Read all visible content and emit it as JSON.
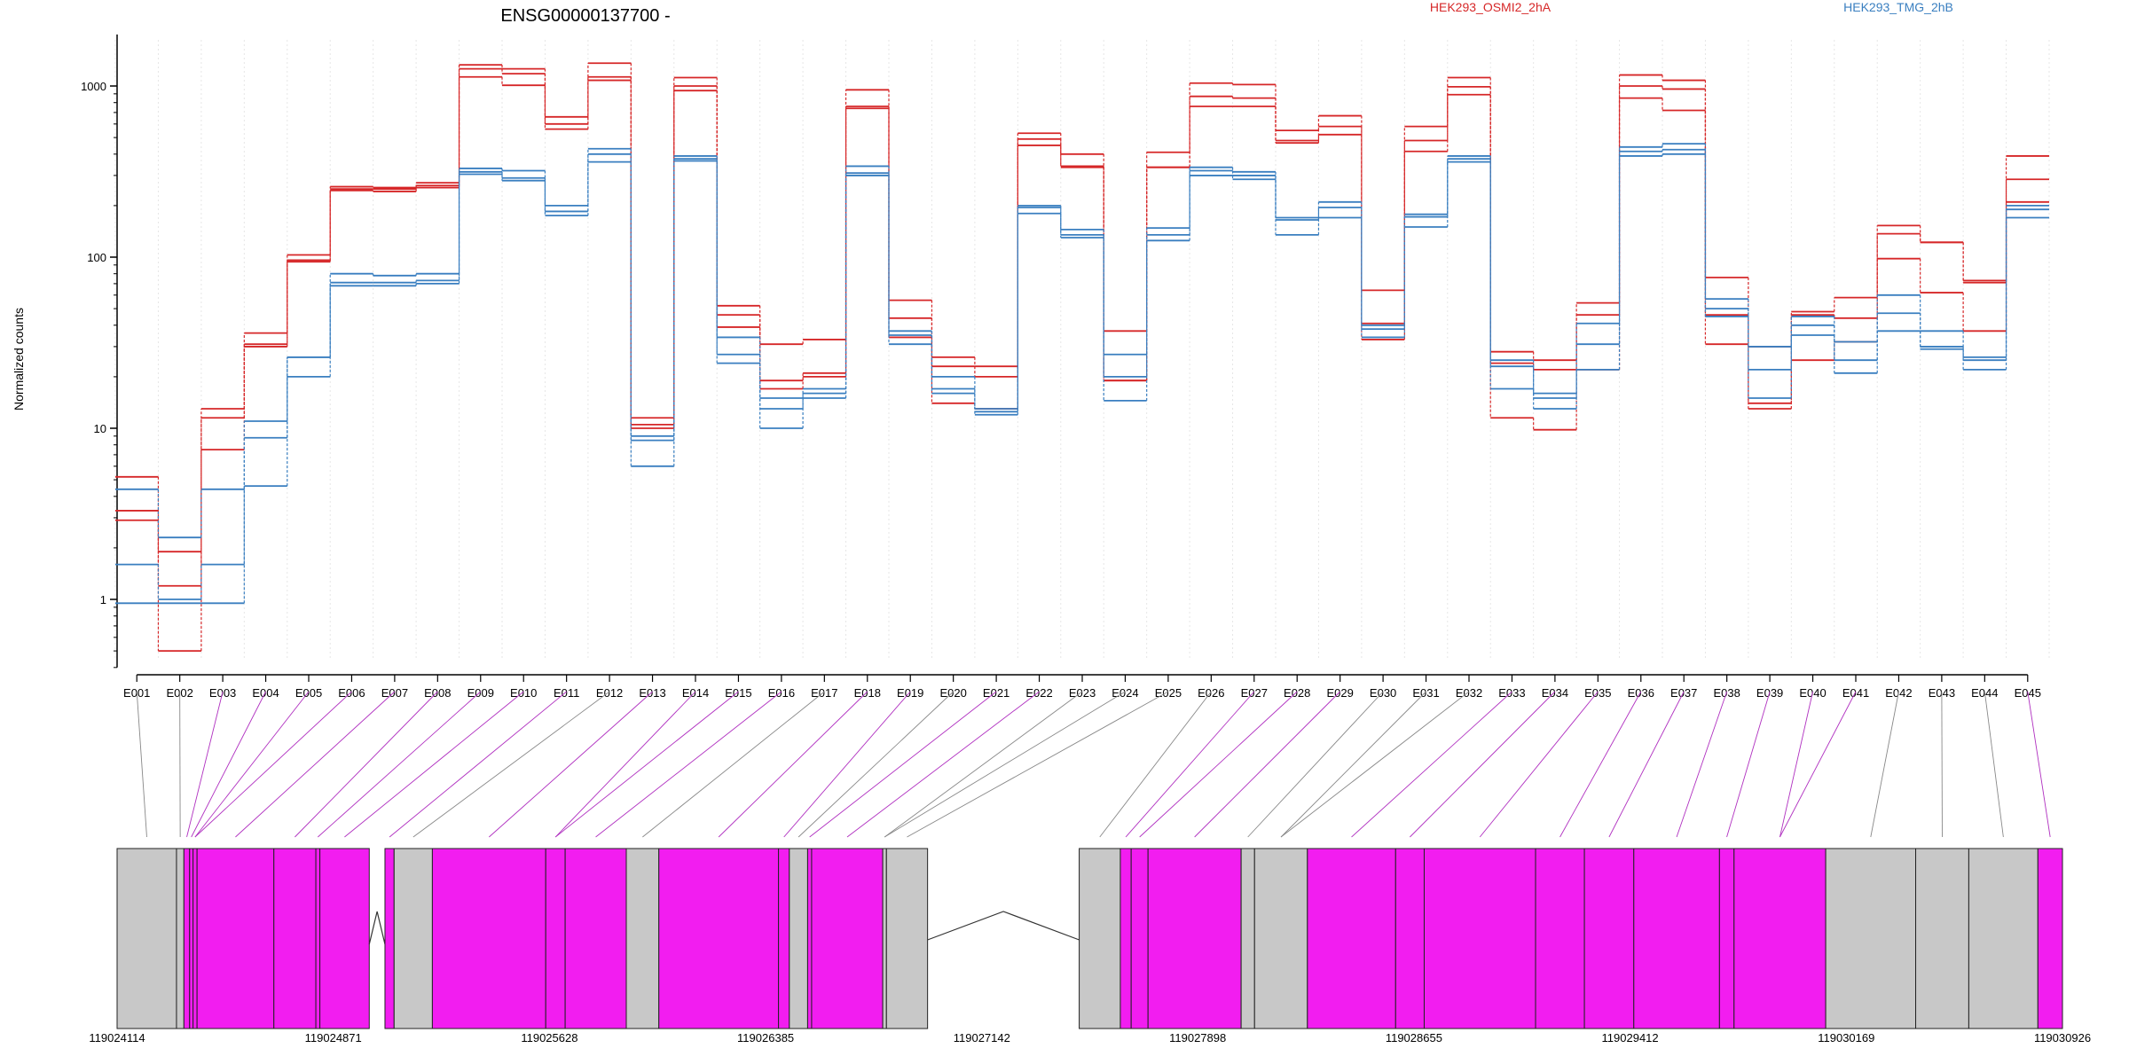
{
  "chart_data": {
    "type": "line",
    "title": "ENSG00000137700 -",
    "ylabel": "Normalized counts",
    "y_scale": "log",
    "ylim": [
      0.4,
      2000
    ],
    "y_ticks": [
      1,
      10,
      100,
      1000
    ],
    "y_tick_labels": [
      "1",
      "10",
      "100",
      "1000"
    ],
    "grid": "vertical dotted at exon boundaries",
    "legend_position": "top-right",
    "colors": {
      "group_a": "#d62728",
      "group_b": "#3a7fc0",
      "connector": "#b030c0",
      "connector_gray": "#888888",
      "exon": "#f21df0",
      "exon_gray": "#c8c8c8"
    },
    "legend": [
      {
        "label": "HEK293_OSMI2_2hA",
        "color": "#d62728"
      },
      {
        "label": "HEK293_TMG_2hB",
        "color": "#3a7fc0"
      }
    ],
    "exons": [
      "E001",
      "E002",
      "E003",
      "E004",
      "E005",
      "E006",
      "E007",
      "E008",
      "E009",
      "E010",
      "E011",
      "E012",
      "E013",
      "E014",
      "E015",
      "E016",
      "E017",
      "E018",
      "E019",
      "E020",
      "E021",
      "E022",
      "E023",
      "E024",
      "E025",
      "E026",
      "E027",
      "E028",
      "E029",
      "E030",
      "E031",
      "E032",
      "E033",
      "E034",
      "E035",
      "E036",
      "E037",
      "E038",
      "E039",
      "E040",
      "E041",
      "E042",
      "E043",
      "E044",
      "E045"
    ],
    "series": [
      {
        "group": "HEK293_OSMI2_2hA",
        "color": "#d62728",
        "values": [
          5.2,
          1.9,
          13,
          36,
          103,
          258,
          255,
          272,
          1330,
          1260,
          660,
          1360,
          11.5,
          1120,
          52,
          31,
          33,
          950,
          56,
          26,
          23,
          530,
          400,
          37,
          410,
          1040,
          1020,
          550,
          670,
          64,
          580,
          1120,
          28,
          25,
          54,
          1160,
          1080,
          76,
          30,
          48,
          58,
          153,
          122,
          73,
          390
        ]
      },
      {
        "group": "HEK293_OSMI2_2hA",
        "color": "#d62728",
        "values": [
          3.3,
          1.2,
          11.5,
          31,
          96,
          250,
          250,
          262,
          1260,
          1180,
          600,
          1130,
          10.5,
          1000,
          46,
          19,
          21,
          760,
          44,
          23,
          20,
          490,
          340,
          19,
          335,
          870,
          850,
          480,
          580,
          41,
          480,
          990,
          24,
          22,
          46,
          1000,
          960,
          46,
          14,
          46,
          44,
          137,
          122,
          71,
          285
        ]
      },
      {
        "group": "HEK293_OSMI2_2hA",
        "color": "#d62728",
        "values": [
          2.9,
          0.5,
          7.5,
          30,
          94,
          245,
          242,
          255,
          1130,
          1010,
          560,
          1080,
          10,
          940,
          39,
          17,
          20,
          740,
          34,
          14,
          13,
          450,
          335,
          19,
          335,
          760,
          760,
          465,
          520,
          33,
          415,
          890,
          11.5,
          9.8,
          22,
          850,
          720,
          31,
          13,
          25,
          32,
          98,
          62,
          37,
          210
        ]
      },
      {
        "group": "HEK293_TMG_2hB",
        "color": "#3a7fc0",
        "values": [
          4.4,
          2.3,
          4.4,
          11,
          26,
          80,
          78,
          80,
          330,
          320,
          200,
          430,
          9,
          390,
          34,
          15,
          17,
          340,
          37,
          20,
          13,
          200,
          145,
          27,
          148,
          335,
          315,
          170,
          210,
          40,
          178,
          390,
          25,
          16,
          41,
          440,
          460,
          57,
          30,
          45,
          32,
          60,
          37,
          26,
          200
        ]
      },
      {
        "group": "HEK293_TMG_2hB",
        "color": "#3a7fc0",
        "values": [
          1.6,
          1.0,
          1.6,
          8.8,
          26,
          71,
          71,
          73,
          315,
          290,
          185,
          400,
          8.5,
          375,
          27,
          13,
          16,
          310,
          35,
          17,
          12.5,
          195,
          135,
          20,
          135,
          320,
          300,
          165,
          195,
          38,
          172,
          375,
          23,
          15,
          31,
          415,
          425,
          50,
          22,
          40,
          25,
          47,
          30,
          25,
          190
        ]
      },
      {
        "group": "HEK293_TMG_2hB",
        "color": "#3a7fc0",
        "values": [
          0.95,
          0.95,
          0.95,
          4.6,
          20,
          68,
          68,
          70,
          305,
          280,
          175,
          360,
          6,
          365,
          24,
          10,
          15,
          300,
          31,
          16,
          12,
          180,
          130,
          14.5,
          125,
          300,
          285,
          135,
          170,
          34,
          150,
          360,
          17,
          13,
          22,
          390,
          400,
          45,
          15,
          35,
          21,
          37,
          29,
          22,
          170
        ]
      }
    ],
    "exon_track": {
      "coordinates": [
        "119024114",
        "119024871",
        "119025628",
        "119026385",
        "119027142",
        "119027898",
        "119028655",
        "119029412",
        "119030169",
        "119030926"
      ],
      "coord_range": [
        119024114,
        119030926
      ],
      "blocks": [
        {
          "start": 119024114,
          "end": 119024322,
          "fill": "gray"
        },
        {
          "start": 119024322,
          "end": 119024348,
          "fill": "gray"
        },
        {
          "start": 119024348,
          "end": 119024368,
          "fill": "magenta"
        },
        {
          "start": 119024368,
          "end": 119024380,
          "fill": "magenta"
        },
        {
          "start": 119024380,
          "end": 119024394,
          "fill": "magenta"
        },
        {
          "start": 119024394,
          "end": 119024663,
          "fill": "magenta"
        },
        {
          "start": 119024663,
          "end": 119024810,
          "fill": "magenta"
        },
        {
          "start": 119024810,
          "end": 119024824,
          "fill": "magenta"
        },
        {
          "start": 119024824,
          "end": 119024997,
          "fill": "magenta"
        },
        {
          "start": 119025052,
          "end": 119025084,
          "fill": "magenta"
        },
        {
          "start": 119025084,
          "end": 119025218,
          "fill": "gray"
        },
        {
          "start": 119025218,
          "end": 119025615,
          "fill": "magenta"
        },
        {
          "start": 119025615,
          "end": 119025683,
          "fill": "magenta"
        },
        {
          "start": 119025683,
          "end": 119025897,
          "fill": "magenta"
        },
        {
          "start": 119025897,
          "end": 119026011,
          "fill": "gray"
        },
        {
          "start": 119026011,
          "end": 119026430,
          "fill": "magenta"
        },
        {
          "start": 119026430,
          "end": 119026468,
          "fill": "magenta"
        },
        {
          "start": 119026468,
          "end": 119026532,
          "fill": "gray"
        },
        {
          "start": 119026532,
          "end": 119026546,
          "fill": "magenta"
        },
        {
          "start": 119026546,
          "end": 119026795,
          "fill": "magenta"
        },
        {
          "start": 119026795,
          "end": 119026808,
          "fill": "gray"
        },
        {
          "start": 119026808,
          "end": 119026952,
          "fill": "gray"
        },
        {
          "start": 119027483,
          "end": 119027627,
          "fill": "gray"
        },
        {
          "start": 119027627,
          "end": 119027665,
          "fill": "magenta"
        },
        {
          "start": 119027665,
          "end": 119027724,
          "fill": "magenta"
        },
        {
          "start": 119027724,
          "end": 119028050,
          "fill": "magenta"
        },
        {
          "start": 119028050,
          "end": 119028097,
          "fill": "gray"
        },
        {
          "start": 119028097,
          "end": 119028282,
          "fill": "gray"
        },
        {
          "start": 119028282,
          "end": 119028591,
          "fill": "magenta"
        },
        {
          "start": 119028591,
          "end": 119028691,
          "fill": "magenta"
        },
        {
          "start": 119028691,
          "end": 119029081,
          "fill": "magenta"
        },
        {
          "start": 119029081,
          "end": 119029252,
          "fill": "magenta"
        },
        {
          "start": 119029252,
          "end": 119029425,
          "fill": "magenta"
        },
        {
          "start": 119029425,
          "end": 119029725,
          "fill": "magenta"
        },
        {
          "start": 119029725,
          "end": 119029776,
          "fill": "magenta"
        },
        {
          "start": 119029776,
          "end": 119030097,
          "fill": "magenta"
        },
        {
          "start": 119030097,
          "end": 119030412,
          "fill": "gray"
        },
        {
          "start": 119030412,
          "end": 119030598,
          "fill": "gray"
        },
        {
          "start": 119030598,
          "end": 119030840,
          "fill": "gray"
        },
        {
          "start": 119030840,
          "end": 119030926,
          "fill": "magenta"
        }
      ],
      "introns": [
        {
          "from": 119024997,
          "to": 119025052
        },
        {
          "from": 119026952,
          "to": 119027483
        }
      ]
    }
  }
}
